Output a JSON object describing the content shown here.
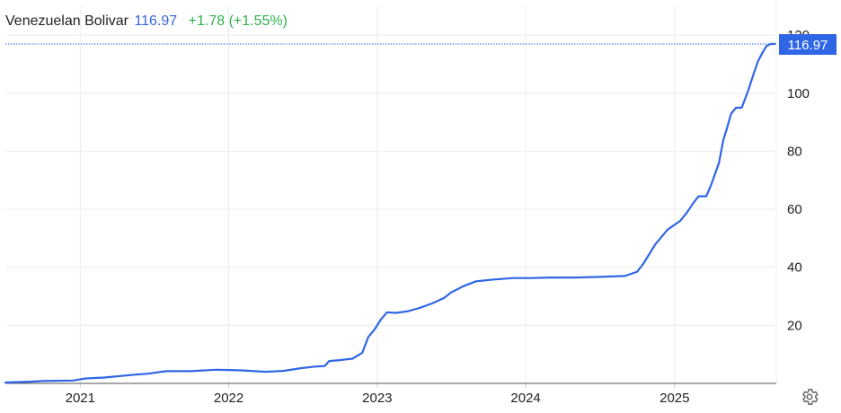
{
  "header": {
    "name": "Venezuelan Bolivar",
    "price": "116.97",
    "change": "+1.78 (+1.55%)"
  },
  "price_badge": "116.97",
  "colors": {
    "line": "#2f66e6",
    "price": "#3366dd",
    "change": "#2cb34a",
    "grid": "#ececec",
    "badge_bg": "#2f66e6"
  },
  "icons": {
    "settings": "gear-icon"
  },
  "chart_data": {
    "type": "line",
    "title": "Venezuelan Bolivar",
    "y_ticks": [
      20,
      40,
      60,
      80,
      100,
      120
    ],
    "y_tick_labels": [
      "20",
      "40",
      "60",
      "80",
      "100",
      "120"
    ],
    "x_ticks": [
      "2021-01-01",
      "2022-01-01",
      "2023-01-01",
      "2024-01-01",
      "2025-01-01"
    ],
    "x_tick_labels": [
      "2021",
      "2022",
      "2023",
      "2024",
      "2025"
    ],
    "ylim": [
      0,
      121
    ],
    "xlim": [
      "2020-07-01",
      "2025-09-08"
    ],
    "grid": true,
    "last_value": 116.97,
    "series": [
      {
        "x": [
          "2020-07-01",
          "2020-09-01",
          "2020-10-01",
          "2020-12-15",
          "2021-01-15",
          "2021-03-01",
          "2021-04-01",
          "2021-05-15",
          "2021-06-15",
          "2021-08-01",
          "2021-09-01",
          "2021-10-01",
          "2021-12-01",
          "2022-02-01",
          "2022-04-01",
          "2022-05-15",
          "2022-07-01",
          "2022-08-01",
          "2022-08-25",
          "2022-09-05",
          "2022-10-01",
          "2022-11-01",
          "2022-11-25",
          "2022-12-10",
          "2022-12-25",
          "2023-01-10",
          "2023-01-25",
          "2023-02-15",
          "2023-03-15",
          "2023-04-15",
          "2023-05-15",
          "2023-06-15",
          "2023-07-01",
          "2023-08-01",
          "2023-09-01",
          "2023-10-15",
          "2023-12-01",
          "2024-01-15",
          "2024-03-01",
          "2024-05-01",
          "2024-07-01",
          "2024-09-01",
          "2024-10-01",
          "2024-10-15",
          "2024-11-15",
          "2024-12-15",
          "2025-01-15",
          "2025-02-01",
          "2025-02-15",
          "2025-03-01",
          "2025-03-20",
          "2025-04-01",
          "2025-04-10",
          "2025-04-20",
          "2025-05-01",
          "2025-05-10",
          "2025-05-20",
          "2025-06-01",
          "2025-06-15",
          "2025-07-01",
          "2025-07-15",
          "2025-07-25",
          "2025-08-05",
          "2025-08-15",
          "2025-08-25",
          "2025-09-05"
        ],
        "values": [
          0.3,
          0.6,
          0.8,
          1,
          1.7,
          2,
          2.4,
          3,
          3.3,
          4.2,
          4.2,
          4.2,
          4.7,
          4.5,
          4,
          4.3,
          5.3,
          5.8,
          6.0,
          7.7,
          8.0,
          8.5,
          10.5,
          16,
          18.5,
          22,
          24.5,
          24.3,
          24.8,
          26.0,
          27.5,
          29.5,
          31.3,
          33.5,
          35.2,
          35.8,
          36.3,
          36.3,
          36.5,
          36.5,
          36.7,
          37,
          38.5,
          41,
          48,
          53,
          56,
          59,
          62,
          64.5,
          64.5,
          68.5,
          72,
          76,
          84,
          88,
          93,
          95,
          95,
          101,
          107,
          111,
          114,
          116.3,
          116.97,
          117
        ]
      }
    ]
  }
}
